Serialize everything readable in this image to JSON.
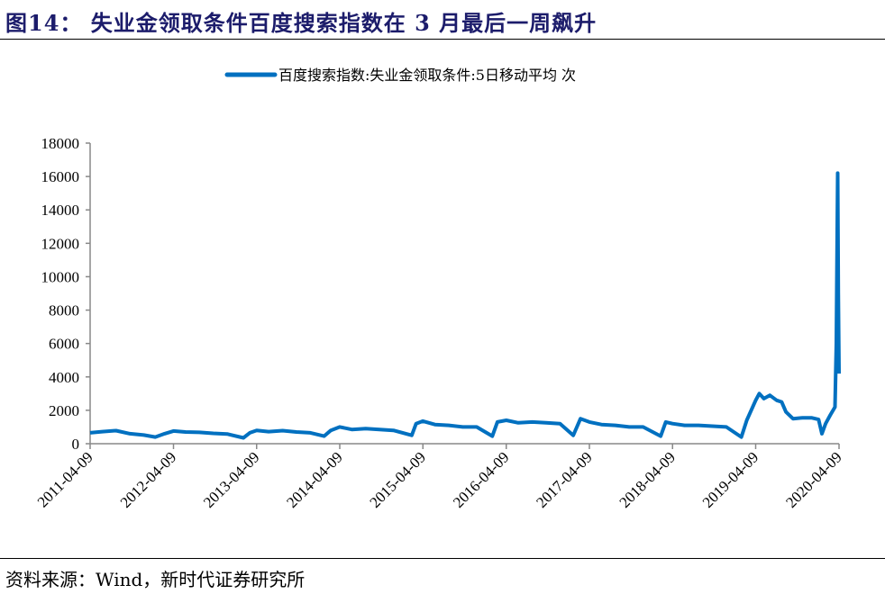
{
  "title": "图14：  失业金领取条件百度搜索指数在 3 月最后一周飙升",
  "source": "资料来源：Wind，新时代证券研究所",
  "chart_data": {
    "type": "line",
    "title": "",
    "xlabel": "",
    "ylabel": "",
    "ylim": [
      0,
      18000
    ],
    "yticks": [
      "0",
      "2000",
      "4000",
      "6000",
      "8000",
      "10000",
      "12000",
      "14000",
      "16000",
      "18000"
    ],
    "xticks": [
      "2011-04-09",
      "2012-04-09",
      "2013-04-09",
      "2014-04-09",
      "2015-04-09",
      "2016-04-09",
      "2017-04-09",
      "2018-04-09",
      "2019-04-09",
      "2020-04-09"
    ],
    "grid": false,
    "legend_position": "top",
    "color": "#0070C0",
    "series": [
      {
        "name": "百度搜索指数:失业金领取条件:5日移动平均 次",
        "points": [
          [
            "2011-04-09",
            650
          ],
          [
            "2011-06-01",
            720
          ],
          [
            "2011-08-01",
            780
          ],
          [
            "2011-10-01",
            600
          ],
          [
            "2011-12-01",
            520
          ],
          [
            "2012-01-20",
            400
          ],
          [
            "2012-03-01",
            600
          ],
          [
            "2012-04-09",
            760
          ],
          [
            "2012-06-01",
            700
          ],
          [
            "2012-08-01",
            680
          ],
          [
            "2012-10-01",
            620
          ],
          [
            "2012-12-01",
            580
          ],
          [
            "2013-02-10",
            350
          ],
          [
            "2013-03-10",
            650
          ],
          [
            "2013-04-09",
            800
          ],
          [
            "2013-06-01",
            720
          ],
          [
            "2013-08-01",
            780
          ],
          [
            "2013-10-01",
            700
          ],
          [
            "2013-12-01",
            650
          ],
          [
            "2014-01-30",
            450
          ],
          [
            "2014-03-01",
            800
          ],
          [
            "2014-04-09",
            1000
          ],
          [
            "2014-06-01",
            850
          ],
          [
            "2014-08-01",
            900
          ],
          [
            "2014-10-01",
            850
          ],
          [
            "2014-12-01",
            800
          ],
          [
            "2015-02-19",
            500
          ],
          [
            "2015-03-10",
            1200
          ],
          [
            "2015-04-09",
            1350
          ],
          [
            "2015-06-01",
            1150
          ],
          [
            "2015-08-01",
            1100
          ],
          [
            "2015-10-01",
            1000
          ],
          [
            "2015-12-01",
            1000
          ],
          [
            "2016-02-08",
            450
          ],
          [
            "2016-03-01",
            1300
          ],
          [
            "2016-04-09",
            1400
          ],
          [
            "2016-06-01",
            1250
          ],
          [
            "2016-08-01",
            1300
          ],
          [
            "2016-10-01",
            1250
          ],
          [
            "2016-12-01",
            1200
          ],
          [
            "2017-01-28",
            500
          ],
          [
            "2017-03-01",
            1500
          ],
          [
            "2017-04-09",
            1300
          ],
          [
            "2017-06-01",
            1150
          ],
          [
            "2017-08-01",
            1100
          ],
          [
            "2017-10-01",
            1000
          ],
          [
            "2017-12-01",
            1000
          ],
          [
            "2018-02-16",
            450
          ],
          [
            "2018-03-10",
            1300
          ],
          [
            "2018-04-09",
            1200
          ],
          [
            "2018-06-01",
            1100
          ],
          [
            "2018-08-01",
            1100
          ],
          [
            "2018-10-01",
            1050
          ],
          [
            "2018-12-01",
            1000
          ],
          [
            "2019-02-05",
            400
          ],
          [
            "2019-03-01",
            1400
          ],
          [
            "2019-04-09",
            2600
          ],
          [
            "2019-04-25",
            3000
          ],
          [
            "2019-05-15",
            2700
          ],
          [
            "2019-06-10",
            2900
          ],
          [
            "2019-07-10",
            2600
          ],
          [
            "2019-08-01",
            2500
          ],
          [
            "2019-08-20",
            1900
          ],
          [
            "2019-09-20",
            1500
          ],
          [
            "2019-11-01",
            1550
          ],
          [
            "2019-12-10",
            1550
          ],
          [
            "2020-01-10",
            1450
          ],
          [
            "2020-01-25",
            600
          ],
          [
            "2020-02-10",
            1200
          ],
          [
            "2020-03-01",
            1700
          ],
          [
            "2020-03-22",
            2200
          ],
          [
            "2020-03-28",
            6000
          ],
          [
            "2020-04-03",
            16200
          ],
          [
            "2020-04-06",
            9000
          ],
          [
            "2020-04-09",
            4200
          ]
        ]
      }
    ]
  }
}
